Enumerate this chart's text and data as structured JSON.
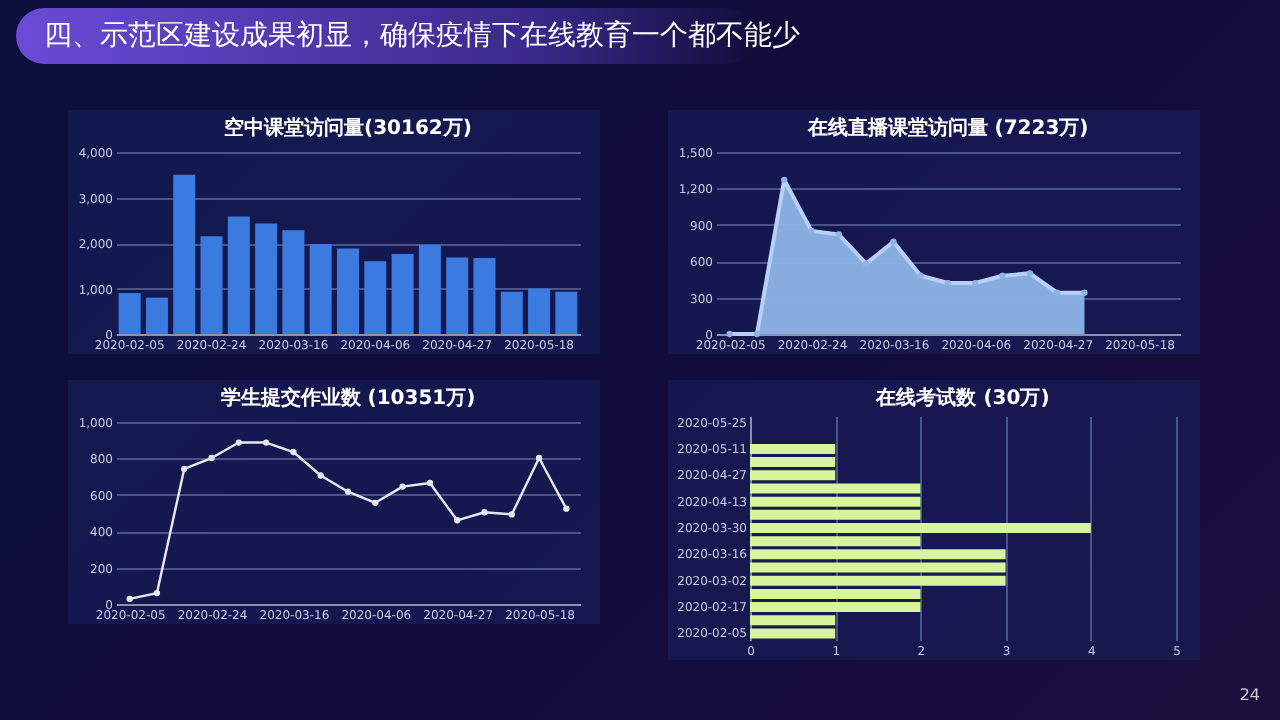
{
  "chart_data": [
    {
      "type": "bar",
      "title": "空中课堂访问量(30162万)",
      "annotations": [
        "四、示范区建设成果初显，确保疫情下在线教育一个都不能少",
        "24"
      ],
      "categories": [
        "2020-02-05",
        null,
        null,
        "2020-02-24",
        null,
        null,
        "2020-03-16",
        null,
        null,
        "2020-04-06",
        null,
        null,
        "2020-04-27",
        null,
        null,
        "2020-05-18",
        null
      ],
      "series": [
        {
          "color": "#3b7be0",
          "values": [
            900,
            800,
            3500,
            2150,
            2580,
            2430,
            2280,
            1980,
            1880,
            1600,
            1760,
            1960,
            1680,
            1670,
            930,
            1000,
            930
          ]
        }
      ],
      "ylim": [
        0,
        4000
      ],
      "yticks": [
        0,
        {
          "value": 1000,
          "label": "1,000"
        },
        {
          "value": 2000,
          "label": "2,000"
        },
        {
          "value": 3000,
          "label": "3,000"
        },
        {
          "value": 4000,
          "label": "4,000"
        }
      ],
      "grid": "y"
    },
    {
      "type": "area",
      "title": "在线直播课堂访问量 (7223万)",
      "categories": [
        "2020-02-05",
        null,
        null,
        "2020-02-24",
        null,
        null,
        "2020-03-16",
        null,
        null,
        "2020-04-06",
        null,
        null,
        "2020-04-27",
        null,
        null,
        "2020-05-18",
        null
      ],
      "series": [
        {
          "color": "#8fb4e8",
          "values": [
            0,
            0,
            1270,
            850,
            820,
            580,
            760,
            480,
            420,
            420,
            480,
            500,
            340,
            340,
            null,
            null,
            null
          ]
        }
      ],
      "ylim": [
        0,
        1500
      ],
      "yticks": [
        0,
        300,
        600,
        900,
        {
          "value": 1200,
          "label": "1,200"
        },
        {
          "value": 1500,
          "label": "1,500"
        }
      ],
      "grid": "y",
      "marker": "circle"
    },
    {
      "type": "line",
      "title": "学生提交作业数 (10351万)",
      "categories": [
        "2020-02-05",
        null,
        null,
        "2020-02-24",
        null,
        null,
        "2020-03-16",
        null,
        null,
        "2020-04-06",
        null,
        null,
        "2020-04-27",
        null,
        null,
        "2020-05-18",
        null
      ],
      "series": [
        {
          "color": "#e8e8f2",
          "values": [
            28,
            60,
            742,
            802,
            887,
            887,
            835,
            706,
            617,
            556,
            645,
            665,
            460,
            504,
            492,
            802,
            524
          ]
        }
      ],
      "ylim": [
        0,
        1000
      ],
      "yticks": [
        0,
        200,
        400,
        600,
        800,
        {
          "value": 1000,
          "label": "1,000"
        }
      ],
      "grid": "y",
      "marker": "circle"
    },
    {
      "type": "bar",
      "orientation": "horizontal",
      "title": "在线考试数 (30万)",
      "categories": [
        "2020-05-25",
        null,
        "2020-05-11",
        null,
        "2020-04-27",
        null,
        "2020-04-13",
        null,
        "2020-03-30",
        null,
        "2020-03-16",
        null,
        "2020-03-02",
        null,
        "2020-02-17",
        null,
        "2020-02-05"
      ],
      "series": [
        {
          "color": "#d6f59c",
          "values": [
            0,
            0,
            1,
            1,
            1,
            2,
            2,
            2,
            4,
            2,
            3,
            3,
            3,
            2,
            2,
            1,
            1
          ]
        }
      ],
      "xlim": [
        0,
        5
      ],
      "xticks": [
        0,
        1,
        2,
        3,
        4,
        5
      ],
      "grid": "x"
    }
  ]
}
